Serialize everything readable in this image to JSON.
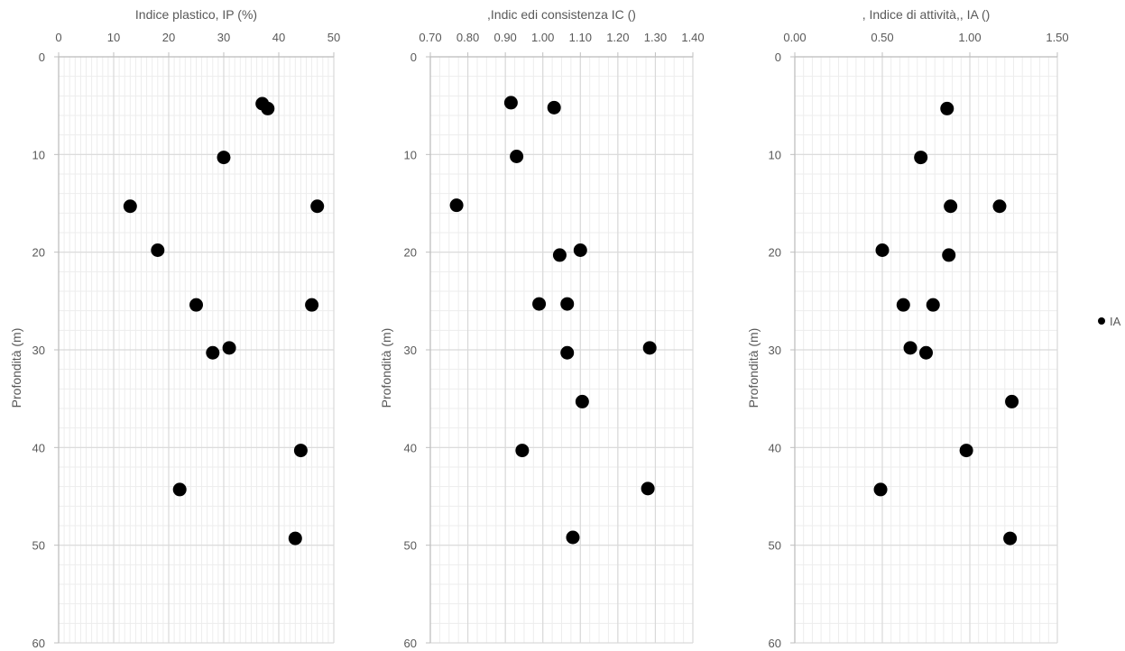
{
  "chart_data": [
    {
      "type": "scatter",
      "title": "Indice plastico, IP (%)",
      "xlabel": "Indice plastico, IP (%)",
      "ylabel": "Profondità (m)",
      "xlim": [
        0,
        50
      ],
      "ylim": [
        0,
        60
      ],
      "y_inverted": true,
      "x_axis_position": "top",
      "grid": true,
      "xticks": [
        "0",
        "10",
        "20",
        "30",
        "40",
        "50"
      ],
      "yticks": [
        "0",
        "10",
        "20",
        "30",
        "40",
        "50",
        "60"
      ],
      "points": [
        {
          "x": 37,
          "y": 4.8
        },
        {
          "x": 38,
          "y": 5.3
        },
        {
          "x": 30,
          "y": 10.3
        },
        {
          "x": 13,
          "y": 15.3
        },
        {
          "x": 47,
          "y": 15.3
        },
        {
          "x": 18,
          "y": 19.8
        },
        {
          "x": 25,
          "y": 25.4
        },
        {
          "x": 46,
          "y": 25.4
        },
        {
          "x": 31,
          "y": 29.8
        },
        {
          "x": 28,
          "y": 30.3
        },
        {
          "x": 44,
          "y": 40.3
        },
        {
          "x": 22,
          "y": 44.3
        },
        {
          "x": 43,
          "y": 49.3
        }
      ]
    },
    {
      "type": "scatter",
      "title": ",Indic edi consistenza  IC ()",
      "xlabel": ",Indic edi consistenza  IC ()",
      "ylabel": "Profondità (m)",
      "xlim": [
        0.7,
        1.4
      ],
      "ylim": [
        0,
        60
      ],
      "y_inverted": true,
      "x_axis_position": "top",
      "grid": true,
      "xticks": [
        "0.70",
        "0.80",
        "0.90",
        "1.00",
        "1.10",
        "1.20",
        "1.30",
        "1.40"
      ],
      "yticks": [
        "0",
        "10",
        "20",
        "30",
        "40",
        "50",
        "60"
      ],
      "points": [
        {
          "x": 0.915,
          "y": 4.7
        },
        {
          "x": 1.03,
          "y": 5.2
        },
        {
          "x": 0.93,
          "y": 10.2
        },
        {
          "x": 0.77,
          "y": 15.2
        },
        {
          "x": 1.1,
          "y": 19.8
        },
        {
          "x": 1.045,
          "y": 20.3
        },
        {
          "x": 0.99,
          "y": 25.3
        },
        {
          "x": 1.065,
          "y": 25.3
        },
        {
          "x": 1.285,
          "y": 29.8
        },
        {
          "x": 1.065,
          "y": 30.3
        },
        {
          "x": 1.105,
          "y": 35.3
        },
        {
          "x": 0.945,
          "y": 40.3
        },
        {
          "x": 1.28,
          "y": 44.2
        },
        {
          "x": 1.08,
          "y": 49.2
        }
      ]
    },
    {
      "type": "scatter",
      "title": ", Indice di attività,, IA ()",
      "xlabel": ", Indice di attività,, IA ()",
      "ylabel": "Profondità (m)",
      "xlim": [
        0,
        1.5
      ],
      "ylim": [
        0,
        60
      ],
      "y_inverted": true,
      "x_axis_position": "top",
      "grid": true,
      "xticks": [
        "0.00",
        "0.50",
        "1.00",
        "1.50"
      ],
      "yticks": [
        "0",
        "10",
        "20",
        "30",
        "40",
        "50",
        "60"
      ],
      "legend": {
        "position": "right",
        "entries": [
          "IA"
        ]
      },
      "points": [
        {
          "x": 0.87,
          "y": 5.3
        },
        {
          "x": 0.72,
          "y": 10.3
        },
        {
          "x": 0.89,
          "y": 15.3
        },
        {
          "x": 1.17,
          "y": 15.3
        },
        {
          "x": 0.5,
          "y": 19.8
        },
        {
          "x": 0.88,
          "y": 20.3
        },
        {
          "x": 0.62,
          "y": 25.4
        },
        {
          "x": 0.79,
          "y": 25.4
        },
        {
          "x": 0.66,
          "y": 29.8
        },
        {
          "x": 0.75,
          "y": 30.3
        },
        {
          "x": 1.24,
          "y": 35.3
        },
        {
          "x": 0.98,
          "y": 40.3
        },
        {
          "x": 0.49,
          "y": 44.3
        },
        {
          "x": 1.23,
          "y": 49.3
        }
      ]
    }
  ],
  "colors": {
    "marker": "#000000",
    "major_grid": "#d9d9d9",
    "minor_grid": "#ededed",
    "axis": "#bfbfbf",
    "text": "#595959"
  }
}
